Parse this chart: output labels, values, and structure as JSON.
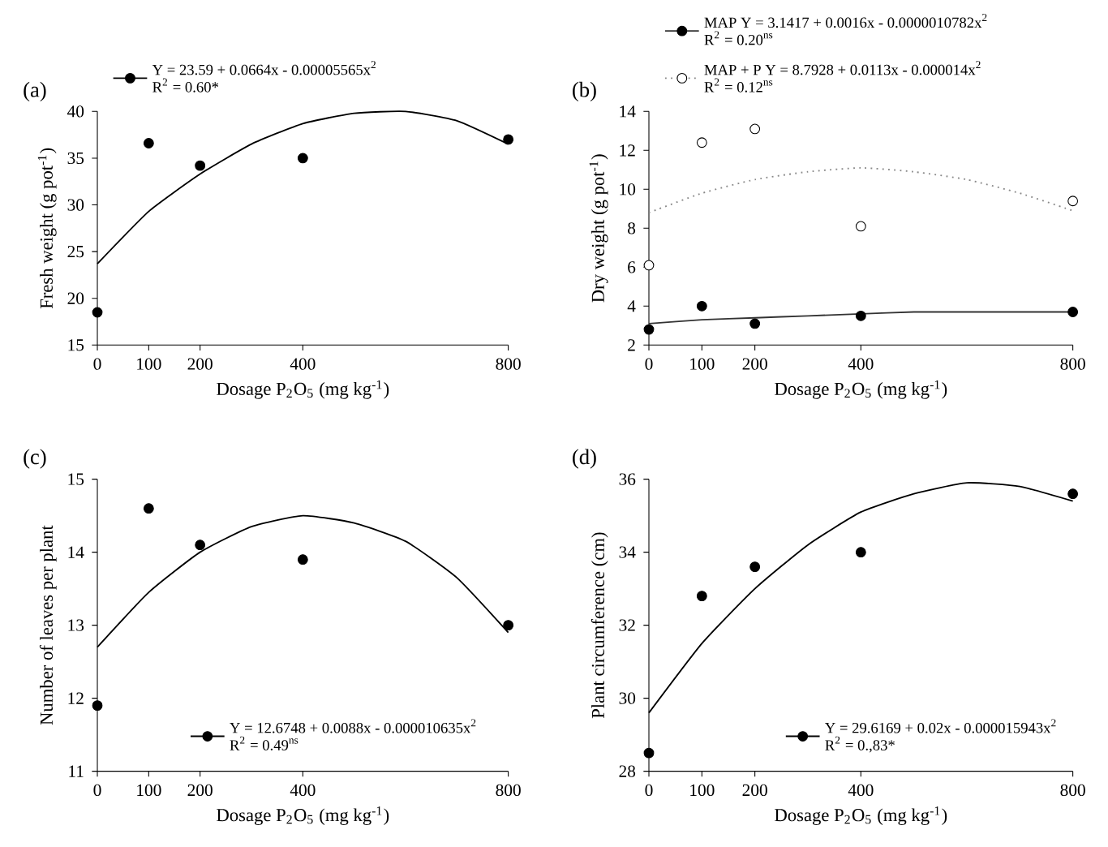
{
  "chart_data": [
    {
      "type": "scatter",
      "title": "(a)",
      "xlabel": "Dosage P$_{2}$O$_{5}$ (mg kg$^{-1}$)",
      "ylabel": "Fresh weight (g pot$^{-1}$)",
      "xlim": [
        0,
        800
      ],
      "ylim": [
        15,
        40
      ],
      "xticks": [
        0,
        100,
        200,
        400,
        800
      ],
      "yticks": [
        15,
        20,
        25,
        30,
        35,
        40
      ],
      "legend": "top",
      "grid": false,
      "series": [
        {
          "name": "Y = 23.59 + 0.0664x - 0.00005565x$^{2}$",
          "color": "#000000",
          "marker": "circle",
          "x": [
            0,
            100,
            200,
            400,
            800
          ],
          "values": [
            18.5,
            36.6,
            34.2,
            35.0,
            37.0
          ]
        },
        {
          "type": "line",
          "color": "#000000",
          "marker": "none",
          "line_style": "solid",
          "x": [
            0,
            100,
            200,
            300,
            400,
            500,
            600,
            700,
            800
          ],
          "values": [
            23.7,
            29.3,
            33.3,
            36.5,
            38.7,
            39.8,
            40.0,
            39.0,
            36.5
          ]
        }
      ],
      "annotations": [
        "R$^{2}$ = 0.60*"
      ]
    },
    {
      "type": "scatter",
      "title": "(b)",
      "xlabel": "Dosage P$_{2}$O$_{5}$ (mg kg$^{-1}$)",
      "ylabel": "Dry weight (g pot$^{-1}$)",
      "xlim": [
        0,
        800
      ],
      "ylim": [
        2,
        14
      ],
      "xticks": [
        0,
        100,
        200,
        400,
        800
      ],
      "yticks": [
        2,
        4,
        6,
        8,
        10,
        12,
        14
      ],
      "legend": "top",
      "grid": false,
      "series": [
        {
          "name": "MAP  Y = 3.1417 + 0.0016x - 0.0000010782x$^{2}$",
          "color": "#000000",
          "marker": "circle",
          "x": [
            0,
            100,
            200,
            400,
            800
          ],
          "values": [
            2.8,
            4.0,
            3.1,
            3.5,
            3.7
          ]
        },
        {
          "type": "line",
          "color": "#333333",
          "marker": "none",
          "line_style": "solid",
          "x": [
            0,
            100,
            200,
            300,
            400,
            500,
            600,
            700,
            800
          ],
          "values": [
            3.1,
            3.3,
            3.4,
            3.5,
            3.6,
            3.7,
            3.7,
            3.7,
            3.7
          ]
        },
        {
          "name": "MAP + P  Y = 8.7928 + 0.0113x - 0.000014x$^{2}$",
          "color": "#ffffff",
          "marker": "circle",
          "x": [
            0,
            100,
            200,
            400,
            800
          ],
          "values": [
            6.1,
            12.4,
            13.1,
            8.1,
            9.4
          ]
        },
        {
          "type": "line",
          "color": "#888888",
          "marker": "none",
          "line_style": "dotted",
          "x": [
            0,
            100,
            200,
            300,
            400,
            500,
            600,
            700,
            800
          ],
          "values": [
            8.8,
            9.8,
            10.5,
            10.9,
            11.1,
            10.9,
            10.5,
            9.8,
            8.9
          ]
        }
      ],
      "annotations": [
        "R$^{2}$ = 0.20$^{ns}$",
        "R$^{2}$ = 0.12$^{ns}$"
      ]
    },
    {
      "type": "scatter",
      "title": "(c)",
      "xlabel": "Dosage P$_{2}$O$_{5}$ (mg kg$^{-1}$)",
      "ylabel": "Number of leaves per plant",
      "xlim": [
        0,
        800
      ],
      "ylim": [
        11,
        15
      ],
      "xticks": [
        0,
        100,
        200,
        400,
        800
      ],
      "yticks": [
        11,
        12,
        13,
        14,
        15
      ],
      "legend": "bottom",
      "grid": false,
      "series": [
        {
          "name": "Y = 12.6748 + 0.0088x - 0.000010635x$^{2}$",
          "color": "#000000",
          "marker": "circle",
          "x": [
            0,
            100,
            200,
            400,
            800
          ],
          "values": [
            11.9,
            14.6,
            14.1,
            13.9,
            13.0
          ]
        },
        {
          "type": "line",
          "color": "#000000",
          "marker": "none",
          "line_style": "solid",
          "x": [
            0,
            100,
            200,
            300,
            400,
            500,
            600,
            700,
            800
          ],
          "values": [
            12.7,
            13.45,
            14.0,
            14.35,
            14.5,
            14.4,
            14.15,
            13.65,
            12.9
          ]
        }
      ],
      "annotations": [
        "R$^{2}$ = 0.49$^{ns}$"
      ]
    },
    {
      "type": "scatter",
      "title": "(d)",
      "xlabel": "Dosage P$_{2}$O$_{5}$ (mg kg$^{-1}$)",
      "ylabel": "Plant circumference (cm)",
      "xlim": [
        0,
        800
      ],
      "ylim": [
        28,
        36
      ],
      "xticks": [
        0,
        100,
        200,
        400,
        800
      ],
      "yticks": [
        28,
        30,
        32,
        34,
        36
      ],
      "legend": "bottom right",
      "grid": false,
      "series": [
        {
          "name": "Y = 29.6169 + 0.02x - 0.000015943x$^{2}$",
          "color": "#000000",
          "marker": "circle",
          "x": [
            0,
            100,
            200,
            400,
            800
          ],
          "values": [
            28.5,
            32.8,
            33.6,
            34.0,
            35.6
          ]
        },
        {
          "type": "line",
          "color": "#000000",
          "marker": "none",
          "line_style": "solid",
          "x": [
            0,
            100,
            200,
            300,
            400,
            500,
            600,
            700,
            800
          ],
          "values": [
            29.6,
            31.5,
            33.0,
            34.2,
            35.1,
            35.6,
            35.9,
            35.8,
            35.4
          ]
        }
      ],
      "annotations": [
        "R$^{2}$ = 0.,83*"
      ]
    }
  ]
}
